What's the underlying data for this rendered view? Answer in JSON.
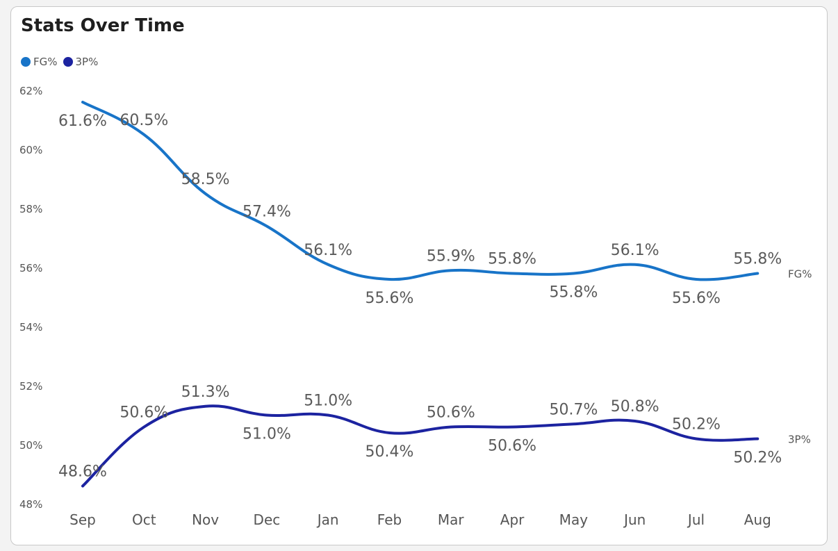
{
  "title": "Stats Over Time",
  "colors": {
    "FG%": "#1874C8",
    "3P%": "#1C23A0"
  },
  "chart_data": {
    "type": "line",
    "title": "Stats Over Time",
    "x": [
      "Sep",
      "Oct",
      "Nov",
      "Dec",
      "Jan",
      "Feb",
      "Mar",
      "Apr",
      "May",
      "Jun",
      "Jul",
      "Aug"
    ],
    "series": [
      {
        "name": "FG%",
        "values": [
          61.6,
          60.5,
          58.5,
          57.4,
          56.1,
          55.6,
          55.9,
          55.8,
          55.8,
          56.1,
          55.6,
          55.8
        ],
        "labels": [
          "61.6%",
          "60.5%",
          "58.5%",
          "57.4%",
          "56.1%",
          "55.6%",
          "55.9%",
          "55.8%",
          "55.8%",
          "56.1%",
          "55.6%",
          "55.8%"
        ],
        "label_pos": [
          "below",
          "above",
          "above",
          "above",
          "above",
          "below",
          "above",
          "above",
          "below",
          "above",
          "below",
          "above"
        ]
      },
      {
        "name": "3P%",
        "values": [
          48.6,
          50.6,
          51.3,
          51.0,
          51.0,
          50.4,
          50.6,
          50.6,
          50.7,
          50.8,
          50.2,
          50.2
        ],
        "labels": [
          "48.6%",
          "50.6%",
          "51.3%",
          "51.0%",
          "51.0%",
          "50.4%",
          "50.6%",
          "50.6%",
          "50.7%",
          "50.8%",
          "50.2%",
          "50.2%"
        ],
        "label_pos": [
          "above",
          "above",
          "above",
          "below",
          "above",
          "below",
          "above",
          "below",
          "above",
          "above",
          "above",
          "below"
        ]
      }
    ],
    "ylim": [
      48,
      62
    ],
    "yticks": [
      48,
      50,
      52,
      54,
      56,
      58,
      60,
      62
    ],
    "ytick_labels": [
      "48%",
      "50%",
      "52%",
      "54%",
      "56%",
      "58%",
      "60%",
      "62%"
    ],
    "legend": "top-left",
    "end_labels": [
      "FG%",
      "3P%"
    ],
    "grid": false
  }
}
